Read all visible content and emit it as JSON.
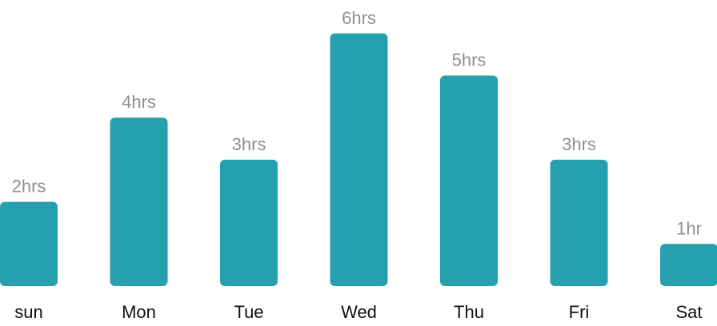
{
  "chart_data": {
    "type": "bar",
    "categories": [
      "sun",
      "Mon",
      "Tue",
      "Wed",
      "Thu",
      "Fri",
      "Sat"
    ],
    "values": [
      2,
      4,
      3,
      6,
      5,
      3,
      1
    ],
    "value_labels": [
      "2hrs",
      "4hrs",
      "3hrs",
      "6hrs",
      "5hrs",
      "3hrs",
      "1hr"
    ],
    "title": "",
    "xlabel": "",
    "ylabel": "",
    "bar_color": "#269fae",
    "label_color": "#8f8f8f",
    "category_color": "#111111",
    "grid": false,
    "legend": "none"
  }
}
